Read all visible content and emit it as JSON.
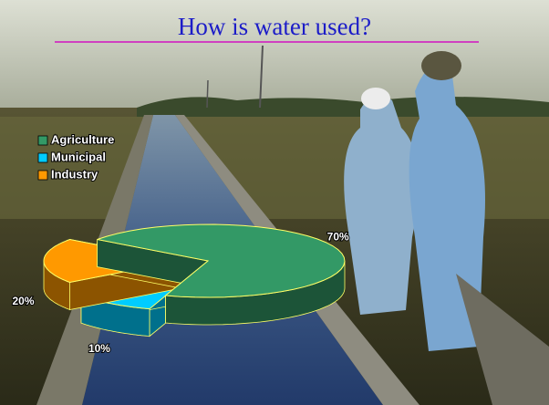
{
  "chart_data": {
    "type": "pie3d",
    "title": "How is water used?",
    "categories": [
      "Agriculture",
      "Municipal",
      "Industry"
    ],
    "values": [
      70,
      10,
      20
    ],
    "value_labels": [
      "70%",
      "10%",
      "20%"
    ],
    "colors": [
      "#339966",
      "#00ccff",
      "#ff9900"
    ],
    "legend": "top-left"
  }
}
